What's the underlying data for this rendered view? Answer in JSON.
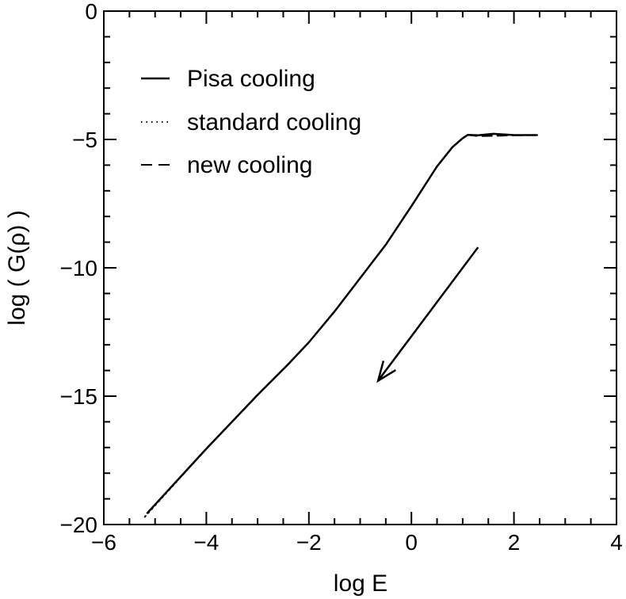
{
  "chart_data": {
    "type": "line",
    "xlabel": "log E",
    "ylabel": "log ( G(ρ) )",
    "xlim": [
      -6,
      4
    ],
    "ylim": [
      -20,
      0
    ],
    "xticks": [
      -6,
      -4,
      -2,
      0,
      2,
      4
    ],
    "yticks": [
      0,
      -5,
      -10,
      -15,
      -20
    ],
    "xtick_labels": [
      "−6",
      "−4",
      "−2",
      "0",
      "2",
      "4"
    ],
    "ytick_labels": [
      "0",
      "−5",
      "−10",
      "−15",
      "−20"
    ],
    "grid": false,
    "legend_position": "top-left",
    "colors": {
      "line": "#000000",
      "background": "#ffffff"
    },
    "series": [
      {
        "name": "Pisa cooling",
        "style": "solid",
        "x": [
          -5.15,
          -4.0,
          -3.0,
          -2.4,
          -2.0,
          -1.5,
          -1.0,
          -0.5,
          0.0,
          0.5,
          0.8,
          1.0,
          1.1,
          1.3,
          1.6,
          2.0,
          2.45
        ],
        "y": [
          -19.55,
          -17.05,
          -14.95,
          -13.75,
          -12.9,
          -11.7,
          -10.4,
          -9.1,
          -7.6,
          -6.05,
          -5.3,
          -4.95,
          -4.82,
          -4.84,
          -4.78,
          -4.83,
          -4.83
        ]
      },
      {
        "name": "standard cooling",
        "style": "dotted",
        "x": [
          -5.2,
          -4.0,
          -3.0,
          -2.4,
          -2.0,
          -1.5,
          -1.0,
          -0.5,
          0.0,
          0.5,
          0.8,
          1.0,
          1.1,
          1.3,
          1.6,
          2.0,
          2.45
        ],
        "y": [
          -19.7,
          -17.05,
          -14.95,
          -13.75,
          -12.9,
          -11.7,
          -10.4,
          -9.1,
          -7.6,
          -6.05,
          -5.3,
          -4.95,
          -4.82,
          -4.83,
          -4.8,
          -4.83,
          -4.83
        ]
      },
      {
        "name": "new cooling",
        "style": "dashed",
        "x": [
          -5.15,
          -4.0,
          -3.0,
          -2.4,
          -2.0,
          -1.5,
          -1.0,
          -0.5,
          0.0,
          0.5,
          0.8,
          1.0,
          1.1,
          1.3,
          1.6,
          2.0,
          2.45
        ],
        "y": [
          -19.55,
          -17.05,
          -14.95,
          -13.75,
          -12.9,
          -11.7,
          -10.4,
          -9.1,
          -7.6,
          -6.05,
          -5.3,
          -4.95,
          -4.82,
          -4.87,
          -4.86,
          -4.84,
          -4.83
        ]
      }
    ],
    "annotations": [
      {
        "type": "arrow",
        "from": [
          1.3,
          -9.2
        ],
        "to": [
          -0.65,
          -14.4
        ]
      }
    ]
  }
}
